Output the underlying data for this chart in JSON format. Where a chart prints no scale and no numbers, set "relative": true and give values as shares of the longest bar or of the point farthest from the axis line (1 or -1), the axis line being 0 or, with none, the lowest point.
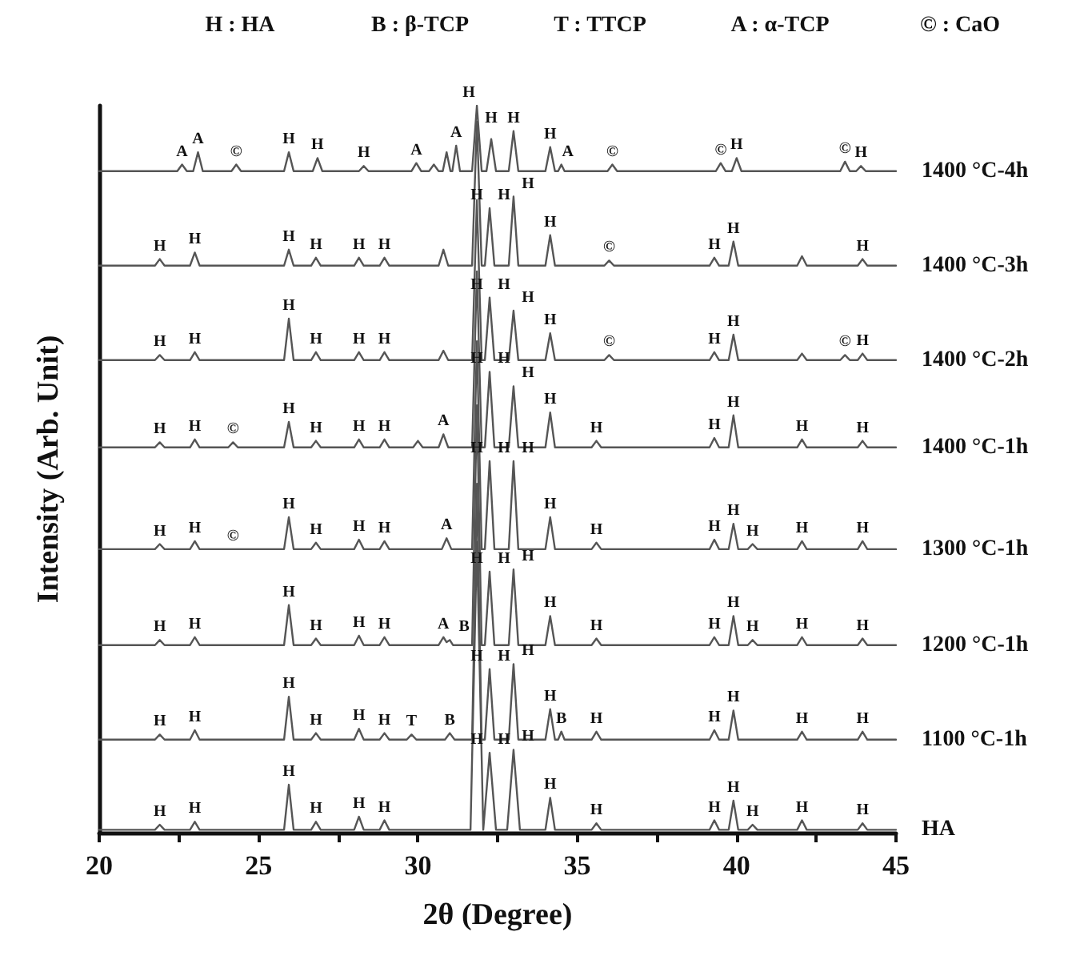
{
  "chart_data": {
    "type": "line",
    "relative": true,
    "marker": "none",
    "line_style": "solid",
    "xlabel": "2θ (Degree)",
    "ylabel": "Intensity (Arb. Unit)",
    "xlim": [
      20,
      45
    ],
    "xticks": [
      20,
      {
        "value": 22.5,
        "label": null
      },
      25,
      {
        "value": 27.5,
        "label": null
      },
      30,
      {
        "value": 32.5,
        "label": null
      },
      35,
      {
        "value": 37.5,
        "label": null
      },
      40,
      {
        "value": 42.5,
        "label": null
      },
      45
    ],
    "series": [
      {
        "name": "HA",
        "color": "#555555",
        "x": [
          20,
          21.75,
          21.9,
          22.05,
          22.85,
          23,
          23.15,
          25.8,
          25.95,
          26.1,
          26.65,
          26.8,
          26.95,
          28,
          28.15,
          28.3,
          28.8,
          28.95,
          29.1,
          31.65,
          31.85,
          32.05,
          32.25,
          32.45,
          32.8,
          33,
          33.2,
          34,
          34.15,
          34.3,
          35.45,
          35.6,
          35.75,
          39.15,
          39.3,
          39.45,
          39.75,
          39.9,
          40.05,
          40.35,
          40.5,
          40.65,
          41.9,
          42.05,
          42.2,
          43.8,
          43.95,
          44.1,
          45
        ],
        "values": [
          0.004,
          0.004,
          0.011,
          0.004,
          0.004,
          0.015,
          0.004,
          0.004,
          0.066,
          0.004,
          0.004,
          0.015,
          0.004,
          0.004,
          0.022,
          0.004,
          0.004,
          0.017,
          0.004,
          0.004,
          0.4,
          0.004,
          0.11,
          0.004,
          0.004,
          0.114,
          0.004,
          0.004,
          0.048,
          0.004,
          0.004,
          0.013,
          0.004,
          0.004,
          0.017,
          0.004,
          0.004,
          0.044,
          0.004,
          0.004,
          0.011,
          0.004,
          0.004,
          0.017,
          0.004,
          0.004,
          0.013,
          0.004,
          0.004
        ]
      },
      {
        "name": "1100 °C-1h",
        "color": "#555555",
        "x": [
          20,
          21.75,
          21.9,
          22.05,
          22.85,
          23,
          23.15,
          25.8,
          25.95,
          26.1,
          26.65,
          26.8,
          26.95,
          28,
          28.15,
          28.3,
          28.8,
          28.95,
          29.1,
          29.65,
          29.8,
          29.95,
          30.85,
          31,
          31.15,
          31.7,
          31.85,
          32,
          32.1,
          32.25,
          32.4,
          32.85,
          33,
          33.15,
          34,
          34.15,
          34.3,
          34.4,
          34.5,
          34.6,
          35.45,
          35.6,
          35.75,
          39.15,
          39.3,
          39.45,
          39.75,
          39.9,
          40.05,
          41.9,
          42.05,
          42.2,
          43.8,
          43.95,
          44.1,
          45
        ],
        "values": [
          0.128,
          0.128,
          0.135,
          0.128,
          0.128,
          0.141,
          0.128,
          0.128,
          0.187,
          0.128,
          0.128,
          0.137,
          0.128,
          0.128,
          0.143,
          0.128,
          0.128,
          0.137,
          0.128,
          0.128,
          0.135,
          0.128,
          0.128,
          0.137,
          0.128,
          0.128,
          0.48,
          0.128,
          0.128,
          0.225,
          0.128,
          0.128,
          0.232,
          0.128,
          0.128,
          0.17,
          0.128,
          0.128,
          0.139,
          0.128,
          0.128,
          0.139,
          0.128,
          0.128,
          0.141,
          0.128,
          0.128,
          0.168,
          0.128,
          0.128,
          0.139,
          0.128,
          0.128,
          0.139,
          0.128,
          0.128
        ]
      },
      {
        "name": "1200 °C-1h",
        "color": "#555555",
        "x": [
          20,
          21.75,
          21.9,
          22.05,
          22.85,
          23,
          23.15,
          25.8,
          25.95,
          26.1,
          26.65,
          26.8,
          26.95,
          28,
          28.15,
          28.3,
          28.8,
          28.95,
          29.1,
          30.65,
          30.8,
          30.9,
          31,
          31.1,
          31.7,
          31.85,
          32,
          32.1,
          32.25,
          32.4,
          32.85,
          33,
          33.15,
          34,
          34.15,
          34.3,
          35.45,
          35.6,
          35.75,
          39.15,
          39.3,
          39.45,
          39.75,
          39.9,
          40.05,
          40.35,
          40.5,
          40.65,
          41.9,
          42.05,
          42.2,
          43.8,
          43.95,
          44.1,
          45
        ],
        "values": [
          0.258,
          0.258,
          0.265,
          0.258,
          0.258,
          0.269,
          0.258,
          0.258,
          0.313,
          0.258,
          0.258,
          0.267,
          0.258,
          0.258,
          0.271,
          0.258,
          0.258,
          0.269,
          0.258,
          0.258,
          0.269,
          0.262,
          0.265,
          0.258,
          0.258,
          0.588,
          0.258,
          0.258,
          0.359,
          0.258,
          0.258,
          0.362,
          0.258,
          0.258,
          0.298,
          0.258,
          0.258,
          0.267,
          0.258,
          0.258,
          0.269,
          0.258,
          0.258,
          0.298,
          0.258,
          0.258,
          0.265,
          0.258,
          0.258,
          0.269,
          0.258,
          0.258,
          0.267,
          0.258,
          0.258
        ]
      },
      {
        "name": "1300 °C-1h",
        "color": "#555555",
        "x": [
          20,
          21.75,
          21.9,
          22.05,
          22.85,
          23,
          23.15,
          25.8,
          25.95,
          26.1,
          26.65,
          26.8,
          26.95,
          28,
          28.15,
          28.3,
          28.8,
          28.95,
          29.1,
          30.75,
          30.9,
          31.05,
          31.7,
          31.85,
          32,
          32.1,
          32.25,
          32.4,
          32.85,
          33,
          33.15,
          34,
          34.15,
          34.3,
          35.45,
          35.6,
          35.75,
          39.15,
          39.3,
          39.45,
          39.75,
          39.9,
          40.05,
          40.35,
          40.5,
          40.65,
          41.9,
          42.05,
          42.2,
          43.8,
          43.95,
          44.1,
          45
        ],
        "values": [
          0.39,
          0.39,
          0.397,
          0.39,
          0.39,
          0.401,
          0.39,
          0.39,
          0.434,
          0.39,
          0.39,
          0.399,
          0.39,
          0.39,
          0.403,
          0.39,
          0.39,
          0.401,
          0.39,
          0.39,
          0.405,
          0.39,
          0.39,
          0.676,
          0.39,
          0.39,
          0.511,
          0.39,
          0.39,
          0.511,
          0.39,
          0.39,
          0.434,
          0.39,
          0.39,
          0.399,
          0.39,
          0.39,
          0.403,
          0.39,
          0.39,
          0.425,
          0.39,
          0.39,
          0.397,
          0.39,
          0.39,
          0.401,
          0.39,
          0.39,
          0.401,
          0.39,
          0.39
        ]
      },
      {
        "name": "1400 °C-1h",
        "color": "#555555",
        "x": [
          20,
          21.75,
          21.9,
          22.05,
          22.85,
          23,
          23.15,
          24.05,
          24.2,
          24.35,
          25.8,
          25.95,
          26.1,
          26.65,
          26.8,
          26.95,
          28,
          28.15,
          28.3,
          28.8,
          28.95,
          29.1,
          29.85,
          30,
          30.15,
          30.65,
          30.8,
          30.95,
          31.7,
          31.85,
          32,
          32.1,
          32.25,
          32.4,
          32.85,
          33,
          33.15,
          34,
          34.15,
          34.3,
          35.45,
          35.6,
          35.75,
          39.15,
          39.3,
          39.45,
          39.75,
          39.9,
          40.05,
          41.9,
          42.05,
          42.2,
          43.8,
          43.95,
          44.1,
          45
        ],
        "values": [
          0.53,
          0.53,
          0.537,
          0.53,
          0.53,
          0.541,
          0.53,
          0.53,
          0.537,
          0.53,
          0.53,
          0.565,
          0.53,
          0.53,
          0.539,
          0.53,
          0.53,
          0.541,
          0.53,
          0.53,
          0.541,
          0.53,
          0.53,
          0.539,
          0.53,
          0.53,
          0.548,
          0.53,
          0.53,
          0.772,
          0.53,
          0.53,
          0.634,
          0.53,
          0.53,
          0.614,
          0.53,
          0.53,
          0.578,
          0.53,
          0.53,
          0.539,
          0.53,
          0.53,
          0.543,
          0.53,
          0.53,
          0.574,
          0.53,
          0.53,
          0.541,
          0.53,
          0.53,
          0.539,
          0.53,
          0.53
        ]
      },
      {
        "name": "1400 °C-2h",
        "color": "#555555",
        "x": [
          20,
          21.75,
          21.9,
          22.05,
          22.85,
          23,
          23.15,
          25.8,
          25.95,
          26.1,
          26.65,
          26.8,
          26.95,
          28,
          28.15,
          28.3,
          28.8,
          28.95,
          29.1,
          30.65,
          30.8,
          30.95,
          31.7,
          31.85,
          32,
          32.1,
          32.25,
          32.4,
          32.85,
          33,
          33.15,
          34,
          34.15,
          34.3,
          35.85,
          36,
          36.15,
          39.15,
          39.3,
          39.45,
          39.75,
          39.9,
          40.05,
          41.9,
          42.05,
          42.2,
          43.25,
          43.4,
          43.55,
          43.8,
          43.95,
          44.1,
          45
        ],
        "values": [
          0.65,
          0.65,
          0.657,
          0.65,
          0.65,
          0.661,
          0.65,
          0.65,
          0.707,
          0.65,
          0.65,
          0.661,
          0.65,
          0.65,
          0.661,
          0.65,
          0.65,
          0.661,
          0.65,
          0.65,
          0.663,
          0.65,
          0.65,
          0.87,
          0.65,
          0.65,
          0.736,
          0.65,
          0.65,
          0.718,
          0.65,
          0.65,
          0.687,
          0.65,
          0.65,
          0.657,
          0.65,
          0.65,
          0.661,
          0.65,
          0.65,
          0.685,
          0.65,
          0.65,
          0.659,
          0.65,
          0.65,
          0.657,
          0.65,
          0.65,
          0.659,
          0.65,
          0.65
        ]
      },
      {
        "name": "1400 °C-3h",
        "color": "#555555",
        "x": [
          20,
          21.75,
          21.9,
          22.05,
          22.85,
          23,
          23.15,
          25.8,
          25.95,
          26.1,
          26.65,
          26.8,
          26.95,
          28,
          28.15,
          28.3,
          28.8,
          28.95,
          29.1,
          30.65,
          30.8,
          30.95,
          31.7,
          31.85,
          32,
          32.1,
          32.25,
          32.4,
          32.85,
          33,
          33.15,
          34,
          34.15,
          34.3,
          35.85,
          36,
          36.15,
          39.15,
          39.3,
          39.45,
          39.75,
          39.9,
          40.05,
          41.9,
          42.05,
          42.2,
          43.8,
          43.95,
          44.1,
          45
        ],
        "values": [
          0.78,
          0.78,
          0.789,
          0.78,
          0.78,
          0.798,
          0.78,
          0.78,
          0.802,
          0.78,
          0.78,
          0.791,
          0.78,
          0.78,
          0.791,
          0.78,
          0.78,
          0.791,
          0.78,
          0.78,
          0.802,
          0.78,
          0.78,
          0.978,
          0.78,
          0.78,
          0.859,
          0.78,
          0.78,
          0.875,
          0.78,
          0.78,
          0.822,
          0.78,
          0.78,
          0.787,
          0.78,
          0.78,
          0.791,
          0.78,
          0.78,
          0.813,
          0.78,
          0.78,
          0.793,
          0.78,
          0.78,
          0.789,
          0.78,
          0.78
        ]
      },
      {
        "name": "1400 °C-4h",
        "color": "#555555",
        "x": [
          20,
          22.45,
          22.6,
          22.75,
          22.95,
          23.1,
          23.25,
          24.15,
          24.3,
          24.45,
          25.8,
          25.95,
          26.1,
          26.7,
          26.85,
          27,
          28.15,
          28.3,
          28.45,
          29.8,
          29.95,
          30.1,
          30.35,
          30.5,
          30.65,
          30.78,
          30.9,
          31.02,
          31.08,
          31.2,
          31.32,
          31.7,
          31.85,
          32,
          32.15,
          32.3,
          32.45,
          32.85,
          33,
          33.15,
          34,
          34.15,
          34.3,
          34.4,
          34.5,
          34.6,
          35.95,
          36.1,
          36.25,
          39.35,
          39.5,
          39.65,
          39.85,
          40,
          40.15,
          43.25,
          43.4,
          43.55,
          43.75,
          43.9,
          44.05,
          45
        ],
        "values": [
          0.91,
          0.91,
          0.919,
          0.91,
          0.91,
          0.936,
          0.91,
          0.91,
          0.919,
          0.91,
          0.91,
          0.936,
          0.91,
          0.91,
          0.928,
          0.91,
          0.91,
          0.917,
          0.91,
          0.91,
          0.921,
          0.91,
          0.91,
          0.919,
          0.91,
          0.91,
          0.936,
          0.91,
          0.91,
          0.945,
          0.91,
          0.91,
          1,
          0.91,
          0.91,
          0.954,
          0.91,
          0.91,
          0.965,
          0.91,
          0.91,
          0.943,
          0.91,
          0.91,
          0.919,
          0.91,
          0.91,
          0.919,
          0.91,
          0.91,
          0.921,
          0.91,
          0.91,
          0.928,
          0.91,
          0.91,
          0.923,
          0.91,
          0.91,
          0.917,
          0.91,
          0.91
        ]
      }
    ],
    "annotations": [
      "H : HA",
      "B : β-TCP",
      "T : TTCP",
      "A : α-TCP",
      "© : CaO",
      {
        "text": "H",
        "x": 21.9,
        "y": 0.011
      },
      {
        "text": "H",
        "x": 23,
        "y": 0.015
      },
      {
        "text": "H",
        "x": 25.95,
        "y": 0.066
      },
      {
        "text": "H",
        "x": 26.8,
        "y": 0.015
      },
      {
        "text": "H",
        "x": 28.15,
        "y": 0.022
      },
      {
        "text": "H",
        "x": 28.95,
        "y": 0.017
      },
      {
        "text": "H",
        "x": 31.85,
        "y": 0.11
      },
      {
        "text": "H",
        "x": 32.25,
        "y": 0.11
      },
      {
        "text": "H",
        "x": 33,
        "y": 0.114
      },
      {
        "text": "H",
        "x": 34.15,
        "y": 0.048
      },
      {
        "text": "H",
        "x": 35.6,
        "y": 0.013
      },
      {
        "text": "H",
        "x": 39.3,
        "y": 0.017
      },
      {
        "text": "H",
        "x": 39.9,
        "y": 0.044
      },
      {
        "text": "H",
        "x": 40.5,
        "y": 0.011
      },
      {
        "text": "H",
        "x": 42.05,
        "y": 0.017
      },
      {
        "text": "H",
        "x": 43.95,
        "y": 0.013
      },
      {
        "text": "H",
        "x": 21.9,
        "y": 0.135
      },
      {
        "text": "H",
        "x": 23,
        "y": 0.141
      },
      {
        "text": "H",
        "x": 25.95,
        "y": 0.187
      },
      {
        "text": "H",
        "x": 26.8,
        "y": 0.137
      },
      {
        "text": "H",
        "x": 28.15,
        "y": 0.143
      },
      {
        "text": "H",
        "x": 28.95,
        "y": 0.137
      },
      {
        "text": "T",
        "x": 29.8,
        "y": 0.135
      },
      {
        "text": "B",
        "x": 31,
        "y": 0.137
      },
      {
        "text": "H",
        "x": 31.85,
        "y": 0.225
      },
      {
        "text": "H",
        "x": 32.25,
        "y": 0.225
      },
      {
        "text": "H",
        "x": 33,
        "y": 0.232
      },
      {
        "text": "H",
        "x": 34.15,
        "y": 0.17
      },
      {
        "text": "B",
        "x": 34.5,
        "y": 0.139
      },
      {
        "text": "H",
        "x": 35.6,
        "y": 0.139
      },
      {
        "text": "H",
        "x": 39.3,
        "y": 0.141
      },
      {
        "text": "H",
        "x": 39.9,
        "y": 0.168
      },
      {
        "text": "H",
        "x": 42.05,
        "y": 0.139
      },
      {
        "text": "H",
        "x": 43.95,
        "y": 0.139
      },
      {
        "text": "H",
        "x": 21.9,
        "y": 0.265
      },
      {
        "text": "H",
        "x": 23,
        "y": 0.269
      },
      {
        "text": "H",
        "x": 25.95,
        "y": 0.313
      },
      {
        "text": "H",
        "x": 26.8,
        "y": 0.267
      },
      {
        "text": "H",
        "x": 28.15,
        "y": 0.271
      },
      {
        "text": "H",
        "x": 28.95,
        "y": 0.269
      },
      {
        "text": "A",
        "x": 30.8,
        "y": 0.269
      },
      {
        "text": "B",
        "x": 31,
        "y": 0.265
      },
      {
        "text": "H",
        "x": 31.85,
        "y": 0.359
      },
      {
        "text": "H",
        "x": 32.25,
        "y": 0.359
      },
      {
        "text": "H",
        "x": 33,
        "y": 0.362
      },
      {
        "text": "H",
        "x": 34.15,
        "y": 0.298
      },
      {
        "text": "H",
        "x": 35.6,
        "y": 0.267
      },
      {
        "text": "H",
        "x": 39.3,
        "y": 0.269
      },
      {
        "text": "H",
        "x": 39.9,
        "y": 0.298
      },
      {
        "text": "H",
        "x": 40.5,
        "y": 0.265
      },
      {
        "text": "H",
        "x": 42.05,
        "y": 0.269
      },
      {
        "text": "H",
        "x": 43.95,
        "y": 0.267
      },
      {
        "text": "H",
        "x": 21.9,
        "y": 0.397
      },
      {
        "text": "H",
        "x": 23,
        "y": 0.401
      },
      {
        "text": "©",
        "x": 24.2,
        "y": 0.39
      },
      {
        "text": "H",
        "x": 25.95,
        "y": 0.434
      },
      {
        "text": "H",
        "x": 26.8,
        "y": 0.399
      },
      {
        "text": "H",
        "x": 28.15,
        "y": 0.403
      },
      {
        "text": "H",
        "x": 28.95,
        "y": 0.401
      },
      {
        "text": "A",
        "x": 30.9,
        "y": 0.405
      },
      {
        "text": "H",
        "x": 31.85,
        "y": 0.511
      },
      {
        "text": "H",
        "x": 32.25,
        "y": 0.511
      },
      {
        "text": "H",
        "x": 33,
        "y": 0.511
      },
      {
        "text": "H",
        "x": 34.15,
        "y": 0.434
      },
      {
        "text": "H",
        "x": 35.6,
        "y": 0.399
      },
      {
        "text": "H",
        "x": 39.3,
        "y": 0.403
      },
      {
        "text": "H",
        "x": 39.9,
        "y": 0.425
      },
      {
        "text": "H",
        "x": 40.5,
        "y": 0.397
      },
      {
        "text": "H",
        "x": 42.05,
        "y": 0.401
      },
      {
        "text": "H",
        "x": 43.95,
        "y": 0.401
      },
      {
        "text": "H",
        "x": 21.9,
        "y": 0.537
      },
      {
        "text": "H",
        "x": 23,
        "y": 0.541
      },
      {
        "text": "©",
        "x": 24.2,
        "y": 0.537
      },
      {
        "text": "H",
        "x": 25.95,
        "y": 0.565
      },
      {
        "text": "H",
        "x": 26.8,
        "y": 0.539
      },
      {
        "text": "H",
        "x": 28.15,
        "y": 0.541
      },
      {
        "text": "H",
        "x": 28.95,
        "y": 0.541
      },
      {
        "text": "A",
        "x": 30.8,
        "y": 0.548
      },
      {
        "text": "H",
        "x": 31.85,
        "y": 0.634
      },
      {
        "text": "H",
        "x": 32.25,
        "y": 0.634
      },
      {
        "text": "H",
        "x": 33,
        "y": 0.614
      },
      {
        "text": "H",
        "x": 34.15,
        "y": 0.578
      },
      {
        "text": "H",
        "x": 35.6,
        "y": 0.539
      },
      {
        "text": "H",
        "x": 39.3,
        "y": 0.543
      },
      {
        "text": "H",
        "x": 39.9,
        "y": 0.574
      },
      {
        "text": "H",
        "x": 42.05,
        "y": 0.541
      },
      {
        "text": "H",
        "x": 43.95,
        "y": 0.539
      },
      {
        "text": "H",
        "x": 21.9,
        "y": 0.657
      },
      {
        "text": "H",
        "x": 23,
        "y": 0.661
      },
      {
        "text": "H",
        "x": 25.95,
        "y": 0.707
      },
      {
        "text": "H",
        "x": 26.8,
        "y": 0.661
      },
      {
        "text": "H",
        "x": 28.15,
        "y": 0.661
      },
      {
        "text": "H",
        "x": 28.95,
        "y": 0.661
      },
      {
        "text": "H",
        "x": 31.85,
        "y": 0.736
      },
      {
        "text": "H",
        "x": 32.25,
        "y": 0.736
      },
      {
        "text": "H",
        "x": 33,
        "y": 0.718
      },
      {
        "text": "H",
        "x": 34.15,
        "y": 0.687
      },
      {
        "text": "©",
        "x": 36,
        "y": 0.657
      },
      {
        "text": "H",
        "x": 39.3,
        "y": 0.661
      },
      {
        "text": "H",
        "x": 39.9,
        "y": 0.685
      },
      {
        "text": "©",
        "x": 43.4,
        "y": 0.657
      },
      {
        "text": "H",
        "x": 43.95,
        "y": 0.659
      },
      {
        "text": "H",
        "x": 21.9,
        "y": 0.789
      },
      {
        "text": "H",
        "x": 23,
        "y": 0.798
      },
      {
        "text": "H",
        "x": 25.95,
        "y": 0.802
      },
      {
        "text": "H",
        "x": 26.8,
        "y": 0.791
      },
      {
        "text": "H",
        "x": 28.15,
        "y": 0.791
      },
      {
        "text": "H",
        "x": 28.95,
        "y": 0.791
      },
      {
        "text": "H",
        "x": 31.85,
        "y": 0.859
      },
      {
        "text": "H",
        "x": 32.25,
        "y": 0.859
      },
      {
        "text": "H",
        "x": 33,
        "y": 0.875
      },
      {
        "text": "H",
        "x": 34.15,
        "y": 0.822
      },
      {
        "text": "©",
        "x": 36,
        "y": 0.787
      },
      {
        "text": "H",
        "x": 39.3,
        "y": 0.791
      },
      {
        "text": "H",
        "x": 39.9,
        "y": 0.813
      },
      {
        "text": "H",
        "x": 43.95,
        "y": 0.789
      },
      {
        "text": "A",
        "x": 22.6,
        "y": 0.919
      },
      {
        "text": "A",
        "x": 23.1,
        "y": 0.936
      },
      {
        "text": "©",
        "x": 24.3,
        "y": 0.919
      },
      {
        "text": "H",
        "x": 25.95,
        "y": 0.936
      },
      {
        "text": "H",
        "x": 26.85,
        "y": 0.928
      },
      {
        "text": "H",
        "x": 28.3,
        "y": 0.917
      },
      {
        "text": "A",
        "x": 29.95,
        "y": 0.921
      },
      {
        "text": "A",
        "x": 31.2,
        "y": 0.945
      },
      {
        "text": "H",
        "x": 31.6,
        "y": 1
      },
      {
        "text": "H",
        "x": 32.3,
        "y": 0.965
      },
      {
        "text": "H",
        "x": 33,
        "y": 0.965
      },
      {
        "text": "H",
        "x": 34.15,
        "y": 0.943
      },
      {
        "text": "A",
        "x": 34.7,
        "y": 0.919
      },
      {
        "text": "©",
        "x": 36.1,
        "y": 0.919
      },
      {
        "text": "©",
        "x": 39.5,
        "y": 0.921
      },
      {
        "text": "H",
        "x": 40,
        "y": 0.928
      },
      {
        "text": "©",
        "x": 43.4,
        "y": 0.923
      },
      {
        "text": "H",
        "x": 43.9,
        "y": 0.917
      }
    ]
  }
}
